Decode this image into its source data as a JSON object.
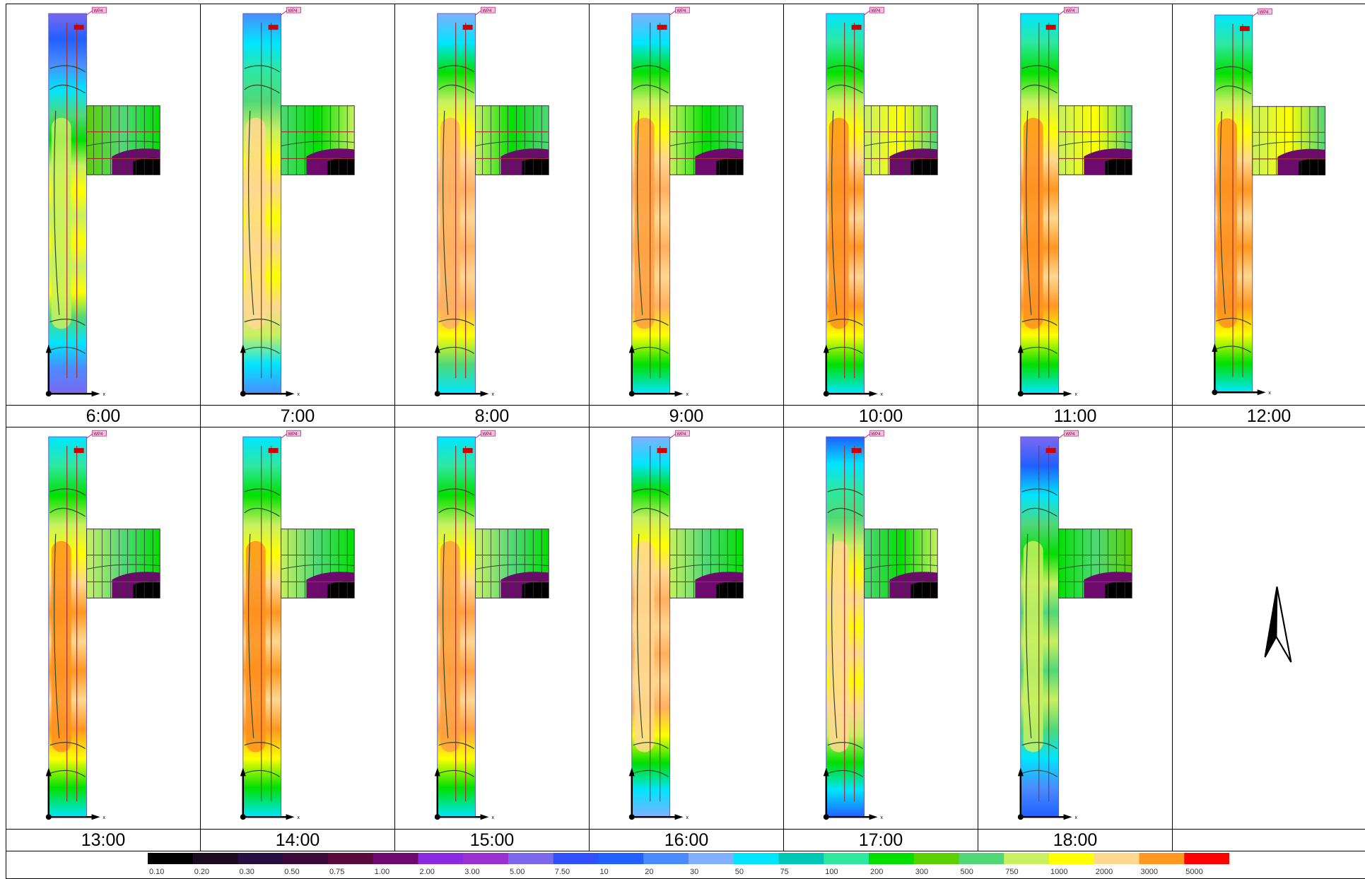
{
  "panel_labels": [
    "6:00",
    "7:00",
    "8:00",
    "9:00",
    "10:00",
    "11:00",
    "12:00",
    "13:00",
    "14:00",
    "15:00",
    "16:00",
    "17:00",
    "18:00"
  ],
  "station_tag": "WP4",
  "axis_label": "x",
  "legend": {
    "values": [
      "0.10",
      "0.20",
      "0.30",
      "0.50",
      "0.75",
      "1.00",
      "2.00",
      "3.00",
      "5.00",
      "7.50",
      "10",
      "20",
      "30",
      "50",
      "75",
      "100",
      "200",
      "300",
      "500",
      "750",
      "1000",
      "2000",
      "3000",
      "5000"
    ],
    "colors": [
      "#000000",
      "#1a0a1e",
      "#241040",
      "#3a0a3a",
      "#5a0a3a",
      "#6e0a6e",
      "#8a2be2",
      "#9b30d0",
      "#7b68ee",
      "#3050ff",
      "#2060ff",
      "#4a8cff",
      "#80b0ff",
      "#00e5ff",
      "#00c8b4",
      "#2ee8a0",
      "#00e000",
      "#5cd000",
      "#50d878",
      "#c8f060",
      "#ffff00",
      "#ffd890",
      "#ff9820",
      "#ff0000"
    ]
  },
  "panels": [
    {
      "t": "6:00",
      "scheme": [
        [
          "#7b68ee",
          "#2060ff",
          "#4a8cff",
          "#00e5ff"
        ],
        [
          "#50d878",
          "#00e000"
        ],
        [
          "#c8f060",
          "#ffff00"
        ],
        [
          "#50d878",
          "#00e5ff",
          "#4a8cff",
          "#7b68ee"
        ]
      ],
      "core": "#c8f060",
      "wing": [
        "#5cd000",
        "#50d878",
        "#00e000"
      ],
      "dark": true
    },
    {
      "t": "7:00",
      "scheme": [
        [
          "#4a8cff",
          "#00e5ff",
          "#2ee8a0"
        ],
        [
          "#50d878",
          "#c8f060"
        ],
        [
          "#ffff00",
          "#ffd890"
        ],
        [
          "#c8f060",
          "#00e5ff",
          "#4a8cff"
        ]
      ],
      "core": "#ffd890",
      "wing": [
        "#50d878",
        "#00e000",
        "#c8f060"
      ],
      "dark": true
    },
    {
      "t": "8:00",
      "scheme": [
        [
          "#80b0ff",
          "#00e5ff",
          "#00e000"
        ],
        [
          "#c8f060",
          "#ffff00"
        ],
        [
          "#ffd890",
          "#ffb060"
        ],
        [
          "#ffff00",
          "#50d878",
          "#00e5ff"
        ]
      ],
      "core": "#ffb060",
      "wing": [
        "#c8f060",
        "#00e000",
        "#50d878"
      ],
      "dark": true
    },
    {
      "t": "9:00",
      "scheme": [
        [
          "#80b0ff",
          "#00e5ff",
          "#00e000"
        ],
        [
          "#c8f060",
          "#ffff00"
        ],
        [
          "#ffd890",
          "#ffb060"
        ],
        [
          "#ffff00",
          "#00e000",
          "#00e5ff"
        ]
      ],
      "core": "#ffa040",
      "wing": [
        "#c8f060",
        "#00e000",
        "#50d878"
      ],
      "dark": true
    },
    {
      "t": "10:00",
      "scheme": [
        [
          "#00e5ff",
          "#2ee8a0",
          "#00e000"
        ],
        [
          "#c8f060",
          "#ffff00"
        ],
        [
          "#ffd890",
          "#ff9820"
        ],
        [
          "#ffff00",
          "#00e000",
          "#00e5ff"
        ]
      ],
      "core": "#ff9020",
      "wing": [
        "#c8f060",
        "#ffff00",
        "#50d878"
      ],
      "dark": true
    },
    {
      "t": "11:00",
      "scheme": [
        [
          "#00e5ff",
          "#2ee8a0",
          "#00e000"
        ],
        [
          "#c8f060",
          "#ffff00"
        ],
        [
          "#ffd890",
          "#ff9820"
        ],
        [
          "#ffff00",
          "#00e000",
          "#00e5ff"
        ]
      ],
      "core": "#ff9020",
      "wing": [
        "#c8f060",
        "#ffff00",
        "#50d878"
      ],
      "dark": true
    },
    {
      "t": "12:00",
      "scheme": [
        [
          "#00e5ff",
          "#2ee8a0",
          "#00e000"
        ],
        [
          "#c8f060",
          "#ffff00"
        ],
        [
          "#ffd890",
          "#ff9820"
        ],
        [
          "#ffff00",
          "#00e000",
          "#00e5ff"
        ]
      ],
      "core": "#ff9020",
      "wing": [
        "#c8f060",
        "#ffff00",
        "#50d878"
      ],
      "dark": true
    },
    {
      "t": "13:00",
      "scheme": [
        [
          "#00e5ff",
          "#2ee8a0",
          "#00e000"
        ],
        [
          "#c8f060",
          "#ffff00"
        ],
        [
          "#ffd890",
          "#ff9820"
        ],
        [
          "#ffff00",
          "#00e000",
          "#00e5ff"
        ]
      ],
      "core": "#ff9020",
      "wing": [
        "#c8f060",
        "#50d878",
        "#00e000"
      ],
      "dark": true
    },
    {
      "t": "14:00",
      "scheme": [
        [
          "#00e5ff",
          "#2ee8a0",
          "#00e000"
        ],
        [
          "#c8f060",
          "#ffff00"
        ],
        [
          "#ffd890",
          "#ff9820"
        ],
        [
          "#ffff00",
          "#00e000",
          "#00e5ff"
        ]
      ],
      "core": "#ff9020",
      "wing": [
        "#c8f060",
        "#50d878",
        "#00e000"
      ],
      "dark": true
    },
    {
      "t": "15:00",
      "scheme": [
        [
          "#00e5ff",
          "#2ee8a0",
          "#00e000"
        ],
        [
          "#c8f060",
          "#ffff00"
        ],
        [
          "#ffd890",
          "#ffa040"
        ],
        [
          "#ffff00",
          "#00e000",
          "#00e5ff"
        ]
      ],
      "core": "#ffa040",
      "wing": [
        "#c8f060",
        "#50d878",
        "#00e000"
      ],
      "dark": true
    },
    {
      "t": "16:00",
      "scheme": [
        [
          "#80b0ff",
          "#00e5ff",
          "#00e000"
        ],
        [
          "#c8f060",
          "#ffff00"
        ],
        [
          "#ffd890",
          "#ffb060"
        ],
        [
          "#ffff00",
          "#00e000",
          "#00e5ff",
          "#80b0ff"
        ]
      ],
      "core": "#ffd890",
      "wing": [
        "#c8f060",
        "#50d878",
        "#00e000"
      ],
      "dark": true
    },
    {
      "t": "17:00",
      "scheme": [
        [
          "#2060ff",
          "#00e5ff",
          "#2ee8a0"
        ],
        [
          "#50d878",
          "#c8f060"
        ],
        [
          "#ffff00",
          "#ffd890"
        ],
        [
          "#c8f060",
          "#00e000",
          "#00e5ff",
          "#2060ff"
        ]
      ],
      "core": "#ffd890",
      "wing": [
        "#50d878",
        "#00e000",
        "#c8f060"
      ],
      "dark": true
    },
    {
      "t": "18:00",
      "scheme": [
        [
          "#7b68ee",
          "#2060ff",
          "#00e5ff"
        ],
        [
          "#50d878",
          "#00e000"
        ],
        [
          "#c8f060",
          "#50d878"
        ],
        [
          "#00e5ff",
          "#4a8cff",
          "#2060ff"
        ]
      ],
      "core": "#c8f060",
      "wing": [
        "#00e000",
        "#50d878",
        "#5cd000"
      ],
      "dark": true
    }
  ]
}
